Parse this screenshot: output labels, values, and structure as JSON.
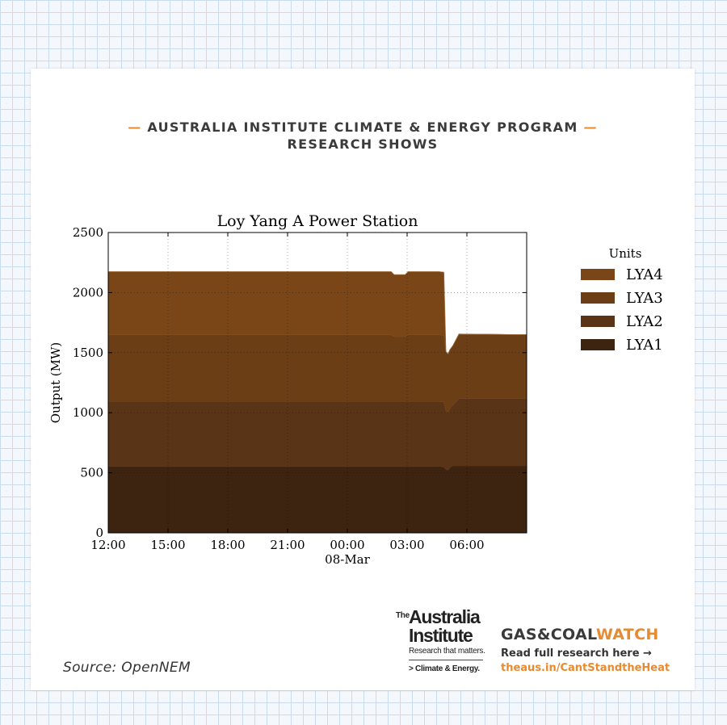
{
  "header": {
    "dash": "—",
    "line1": "AUSTRALIA INSTITUTE CLIMATE & ENERGY PROGRAM",
    "line2": "RESEARCH SHOWS"
  },
  "source": "Source: OpenNEM",
  "logo": {
    "the": "The",
    "name_line1": "Australia",
    "name_line2": "Institute",
    "tagline": "Research that matters.",
    "subline": "> Climate & Energy."
  },
  "gcw": {
    "title_part1": "GAS&COAL",
    "title_part2": "WATCH",
    "read": "Read full research here →",
    "url": "theaus.in/CantStandtheHeat"
  },
  "colors": {
    "accent": "#e88a2f",
    "LYA1": "#3d2411",
    "LYA2": "#5a3416",
    "LYA3": "#6c3e16",
    "LYA4": "#7b4617"
  },
  "chart_data": {
    "type": "area",
    "title": "Loy Yang A Power Station",
    "xlabel": "",
    "x_sublabel": "08-Mar",
    "ylabel": "Output (MW)",
    "xlim": [
      0,
      21
    ],
    "ylim": [
      0,
      2500
    ],
    "x_ticks": [
      {
        "x": 0,
        "label": "12:00"
      },
      {
        "x": 3,
        "label": "15:00"
      },
      {
        "x": 6,
        "label": "18:00"
      },
      {
        "x": 9,
        "label": "21:00"
      },
      {
        "x": 12,
        "label": "00:00"
      },
      {
        "x": 15,
        "label": "03:00"
      },
      {
        "x": 18,
        "label": "06:00"
      }
    ],
    "y_ticks": [
      0,
      500,
      1000,
      1500,
      2000,
      2500
    ],
    "grid": "dotted",
    "legend_title": "Units",
    "legend_position": "right",
    "legend_order": [
      "LYA4",
      "LYA3",
      "LYA2",
      "LYA1"
    ],
    "stacked": true,
    "series": [
      {
        "name": "LYA1",
        "color": "#3d2411",
        "points": [
          [
            0,
            555
          ],
          [
            16.6,
            555
          ],
          [
            16.85,
            550
          ],
          [
            16.95,
            530
          ],
          [
            17.05,
            525
          ],
          [
            17.15,
            548
          ],
          [
            17.3,
            560
          ],
          [
            21,
            560
          ]
        ]
      },
      {
        "name": "LYA2",
        "color": "#5a3416",
        "points": [
          [
            0,
            540
          ],
          [
            16.6,
            540
          ],
          [
            16.85,
            540
          ],
          [
            16.95,
            490
          ],
          [
            17.05,
            480
          ],
          [
            17.15,
            490
          ],
          [
            17.3,
            505
          ],
          [
            17.6,
            560
          ],
          [
            21,
            560
          ]
        ]
      },
      {
        "name": "LYA3",
        "color": "#6c3e16",
        "points": [
          [
            0,
            555
          ],
          [
            14.2,
            555
          ],
          [
            14.35,
            540
          ],
          [
            14.9,
            540
          ],
          [
            15.05,
            555
          ],
          [
            16.6,
            555
          ],
          [
            16.85,
            555
          ],
          [
            16.95,
            490
          ],
          [
            17.05,
            485
          ],
          [
            17.15,
            488
          ],
          [
            17.3,
            495
          ],
          [
            17.6,
            535
          ],
          [
            21,
            530
          ]
        ]
      },
      {
        "name": "LYA4",
        "color": "#7b4617",
        "points": [
          [
            0,
            525
          ],
          [
            14.2,
            525
          ],
          [
            14.35,
            515
          ],
          [
            14.9,
            515
          ],
          [
            15.05,
            525
          ],
          [
            16.6,
            525
          ],
          [
            16.85,
            525
          ],
          [
            16.95,
            0
          ],
          [
            17.05,
            0
          ],
          [
            17.15,
            0
          ],
          [
            17.3,
            0
          ],
          [
            17.6,
            0
          ],
          [
            21,
            0
          ]
        ]
      }
    ]
  }
}
